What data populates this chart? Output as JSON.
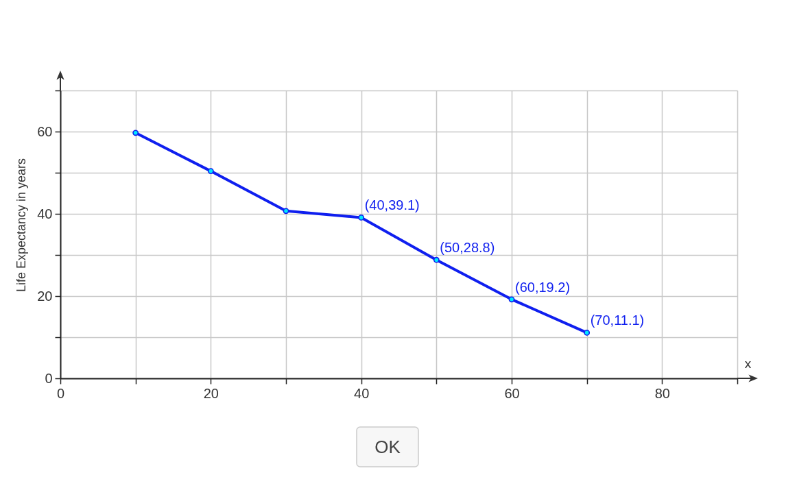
{
  "chart_data": {
    "type": "line",
    "xlabel": "x",
    "ylabel": "Life Expectancy in years",
    "x": [
      10,
      20,
      30,
      40,
      50,
      60,
      70
    ],
    "series": [
      {
        "color": "#0f1fef",
        "values": [
          59.7,
          50.4,
          40.7,
          39.1,
          28.8,
          19.2,
          11.1
        ],
        "value_labels": [
          null,
          null,
          null,
          "(40,39.1)",
          "(50,28.8)",
          "(60,19.2)",
          "(70,11.1)"
        ]
      }
    ],
    "xlim": [
      0,
      90
    ],
    "ylim": [
      0,
      70
    ],
    "xticks": [
      0,
      {
        "value": 10,
        "label": null
      },
      20,
      {
        "value": 30,
        "label": null
      },
      40,
      {
        "value": 50,
        "label": null
      },
      60,
      {
        "value": 70,
        "label": null
      },
      80,
      {
        "value": 90,
        "label": null
      }
    ],
    "yticks": [
      0,
      {
        "value": 10,
        "label": null
      },
      20,
      {
        "value": 30,
        "label": null
      },
      40,
      {
        "value": 50,
        "label": null
      },
      60,
      {
        "value": 70,
        "label": null
      }
    ],
    "grid": true,
    "marker": "circle",
    "line_style": "solid",
    "annotations": [
      "OK"
    ]
  }
}
